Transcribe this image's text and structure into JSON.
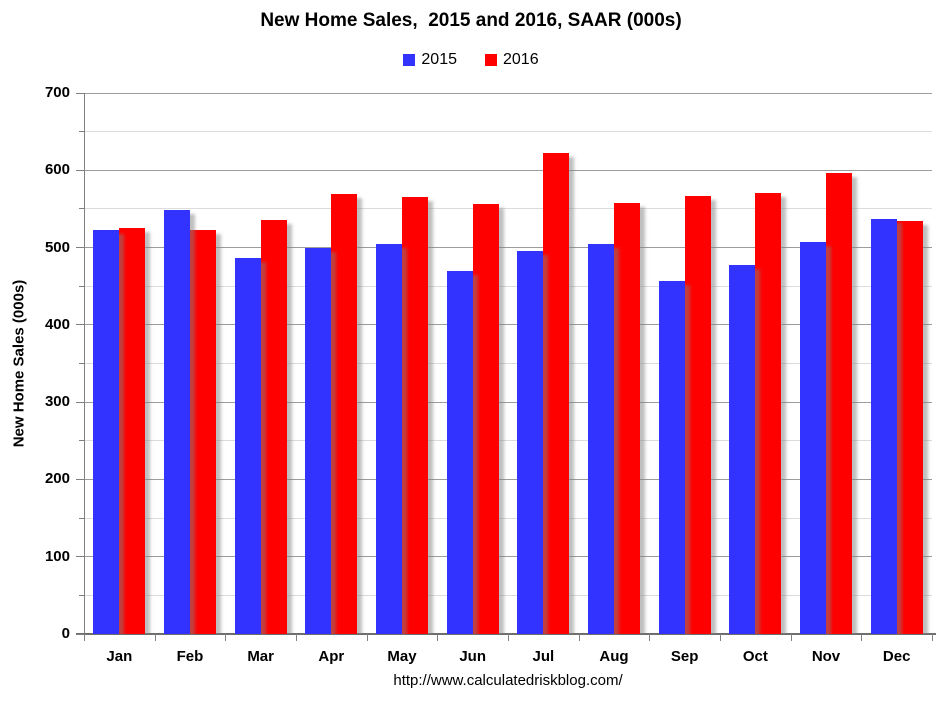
{
  "chart_data": {
    "type": "bar",
    "title": "New Home Sales,  2015 and 2016, SAAR (000s)",
    "ylabel": "New Home Sales (000s)",
    "categories": [
      "Jan",
      "Feb",
      "Mar",
      "Apr",
      "May",
      "Jun",
      "Jul",
      "Aug",
      "Sep",
      "Oct",
      "Nov",
      "Dec"
    ],
    "series": [
      {
        "name": "2015",
        "color": "#3333FF",
        "values": [
          523,
          548,
          487,
          500,
          505,
          470,
          496,
          504,
          457,
          477,
          507,
          537
        ]
      },
      {
        "name": "2016",
        "color": "#FF0000",
        "values": [
          525,
          523,
          536,
          569,
          565,
          557,
          622,
          558,
          567,
          570,
          597,
          535
        ]
      }
    ],
    "ylim": [
      0,
      700
    ],
    "y_major_step": 100,
    "y_minor_step": 50,
    "y_tick_labels": [
      "0",
      "100",
      "200",
      "300",
      "400",
      "500",
      "600",
      "700"
    ],
    "grid": true,
    "legend_position": "top-center"
  },
  "footer": {
    "url": "http://www.calculatedriskblog.com/"
  },
  "colors": {
    "major_grid": "#9c9c9c",
    "minor_grid": "#dcdcdc",
    "axis": "#808080",
    "baseline": "#6e6e6e",
    "bar_shadow": "rgba(128,128,128,0.5)",
    "text": "#000000"
  }
}
